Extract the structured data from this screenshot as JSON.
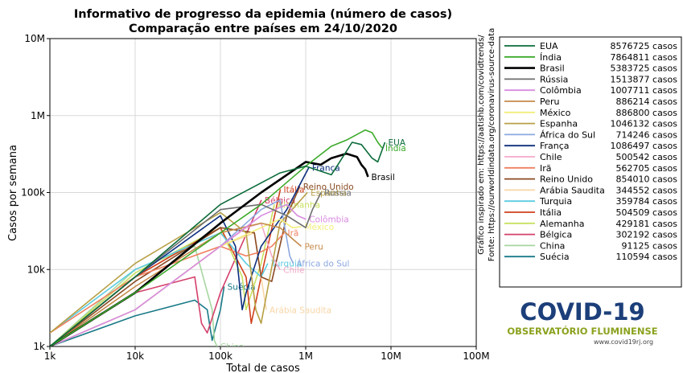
{
  "chart_data": {
    "type": "line",
    "title": "Informativo de progresso da epidemia (número de casos)",
    "subtitle": "Comparação entre países em 24/10/2020",
    "x_label": "Total de casos",
    "y_label": "Casos por semana",
    "log_x": true,
    "log_y": true,
    "grid": true,
    "legend": "right",
    "xlim": [
      1000,
      100000000
    ],
    "ylim": [
      1000,
      10000000
    ],
    "xticks": [
      {
        "value": 1000,
        "label": "1k"
      },
      {
        "value": 10000,
        "label": "10k"
      },
      {
        "value": 100000,
        "label": "100k"
      },
      {
        "value": 1000000,
        "label": "1M"
      },
      {
        "value": 10000000,
        "label": "10M"
      },
      {
        "value": 100000000,
        "label": "100M"
      }
    ],
    "yticks": [
      {
        "value": 1000,
        "label": "1k"
      },
      {
        "value": 10000,
        "label": "10k"
      },
      {
        "value": 100000,
        "label": "100k"
      },
      {
        "value": 1000000,
        "label": "1M"
      },
      {
        "value": 10000000,
        "label": "10M"
      }
    ],
    "notes": [
      "Gráfico inspirado em: https://aatishb.com/covidtrends/",
      "Fonte: https://ourworldindata.org/coronavirus-source-data"
    ],
    "series": [
      {
        "name": "EUA",
        "total": "8576725 casos",
        "color": "#0b6b3a",
        "x": [
          1000,
          10000,
          100000,
          500000,
          1000000,
          2000000,
          2500000,
          3500000,
          4500000,
          6000000,
          7000000,
          8500000
        ],
        "values": [
          1000,
          8000,
          70000,
          180000,
          220000,
          170000,
          250000,
          450000,
          420000,
          280000,
          250000,
          450000
        ]
      },
      {
        "name": "Índia",
        "total": "7864811 casos",
        "color": "#3caa2a",
        "x": [
          1000,
          10000,
          100000,
          300000,
          1000000,
          2000000,
          3000000,
          5000000,
          6000000,
          7000000,
          7864811
        ],
        "values": [
          1000,
          5000,
          30000,
          70000,
          220000,
          400000,
          480000,
          650000,
          600000,
          450000,
          380000
        ]
      },
      {
        "name": "Brasil",
        "total": "5383725 casos",
        "color": "#000000",
        "x": [
          1000,
          10000,
          100000,
          300000,
          1000000,
          1500000,
          2000000,
          3000000,
          4000000,
          4500000,
          5000000,
          5383725
        ],
        "values": [
          1000,
          5000,
          40000,
          100000,
          250000,
          230000,
          280000,
          320000,
          290000,
          230000,
          200000,
          160000
        ]
      },
      {
        "name": "Rússia",
        "total": "1513877 casos",
        "color": "#6e6e6e",
        "x": [
          1000,
          10000,
          100000,
          300000,
          600000,
          1000000,
          1200000,
          1513877
        ],
        "values": [
          1000,
          8000,
          60000,
          70000,
          50000,
          35000,
          60000,
          100000
        ]
      },
      {
        "name": "Colômbia",
        "total": "1007711 casos",
        "color": "#d98be0",
        "x": [
          1000,
          10000,
          100000,
          300000,
          600000,
          800000,
          1007711
        ],
        "values": [
          1000,
          3000,
          20000,
          50000,
          70000,
          50000,
          45000
        ]
      },
      {
        "name": "Peru",
        "total": "886214 casos",
        "color": "#c58a4a",
        "x": [
          1000,
          10000,
          100000,
          300000,
          500000,
          700000,
          886214
        ],
        "values": [
          1000,
          6000,
          30000,
          40000,
          35000,
          25000,
          20000
        ]
      },
      {
        "name": "México",
        "total": "886800 casos",
        "color": "#f3ee7a",
        "x": [
          1000,
          10000,
          100000,
          300000,
          500000,
          700000,
          886800
        ],
        "values": [
          1000,
          3000,
          20000,
          35000,
          45000,
          35000,
          36000
        ]
      },
      {
        "name": "Espanha",
        "total": "1046132 casos",
        "color": "#b8a046",
        "x": [
          1000,
          10000,
          100000,
          200000,
          260000,
          300000,
          500000,
          1046132
        ],
        "values": [
          1500,
          12000,
          55000,
          30000,
          3000,
          2000,
          40000,
          100000
        ]
      },
      {
        "name": "África do Sul",
        "total": "714246 casos",
        "color": "#8ca8e0",
        "x": [
          1000,
          10000,
          100000,
          300000,
          500000,
          650000,
          714246
        ],
        "values": [
          1000,
          3000,
          20000,
          60000,
          80000,
          15000,
          12000
        ]
      },
      {
        "name": "França",
        "total": "1086497 casos",
        "color": "#0d2f7e",
        "x": [
          1000,
          10000,
          100000,
          150000,
          180000,
          200000,
          300000,
          600000,
          1086497
        ],
        "values": [
          1000,
          8000,
          50000,
          20000,
          3000,
          5000,
          20000,
          60000,
          210000
        ]
      },
      {
        "name": "Chile",
        "total": "500542 casos",
        "color": "#f4a8c8",
        "x": [
          1000,
          10000,
          100000,
          200000,
          300000,
          400000,
          500542
        ],
        "values": [
          1000,
          3000,
          20000,
          35000,
          40000,
          15000,
          10000
        ]
      },
      {
        "name": "Irã",
        "total": "562705 casos",
        "color": "#f08060",
        "x": [
          1000,
          10000,
          100000,
          200000,
          300000,
          400000,
          562705
        ],
        "values": [
          1500,
          8000,
          20000,
          15000,
          17000,
          20000,
          30000
        ]
      },
      {
        "name": "Reino Unido",
        "total": "854010 casos",
        "color": "#8a4a22",
        "x": [
          1000,
          10000,
          100000,
          250000,
          300000,
          400000,
          600000,
          854010
        ],
        "values": [
          1000,
          7000,
          35000,
          30000,
          8000,
          7000,
          50000,
          120000
        ]
      },
      {
        "name": "Arábia Saudita",
        "total": "344552 casos",
        "color": "#f8d6a6",
        "x": [
          1000,
          10000,
          100000,
          250000,
          300000,
          344552
        ],
        "values": [
          1000,
          3000,
          20000,
          30000,
          8000,
          3000
        ]
      },
      {
        "name": "Turquia",
        "total": "359784 casos",
        "color": "#5ccce0",
        "x": [
          1000,
          10000,
          100000,
          200000,
          300000,
          359784
        ],
        "values": [
          1500,
          10000,
          30000,
          12000,
          8000,
          12000
        ]
      },
      {
        "name": "Itália",
        "total": "504509 casos",
        "color": "#d1401c",
        "x": [
          1000,
          10000,
          100000,
          200000,
          230000,
          300000,
          504509
        ],
        "values": [
          1000,
          8000,
          35000,
          8000,
          2000,
          8000,
          110000
        ]
      },
      {
        "name": "Alemanha",
        "total": "429181 casos",
        "color": "#c8e062",
        "x": [
          1000,
          10000,
          100000,
          180000,
          200000,
          300000,
          429181
        ],
        "values": [
          1000,
          9000,
          35000,
          8000,
          3000,
          12000,
          70000
        ]
      },
      {
        "name": "Bélgica",
        "total": "302192 casos",
        "color": "#d4406c",
        "x": [
          1000,
          10000,
          50000,
          60000,
          70000,
          100000,
          302192
        ],
        "values": [
          1000,
          5000,
          8000,
          2000,
          1500,
          5000,
          80000
        ]
      },
      {
        "name": "China",
        "total": "91125 casos",
        "color": "#a6d6a0",
        "x": [
          1000,
          10000,
          50000,
          80000,
          85000,
          91125
        ],
        "values": [
          1000,
          10000,
          20000,
          3000,
          1200,
          1000
        ]
      },
      {
        "name": "Suécia",
        "total": "110594 casos",
        "color": "#1a7a88",
        "x": [
          1000,
          10000,
          50000,
          70000,
          80000,
          100000,
          110594
        ],
        "values": [
          1000,
          2500,
          4000,
          3000,
          1200,
          3000,
          6000
        ]
      }
    ]
  },
  "logo": {
    "title": "COVID-19",
    "subtitle": "OBSERVATÓRIO FLUMINENSE",
    "url": "www.covid19rj.org"
  }
}
